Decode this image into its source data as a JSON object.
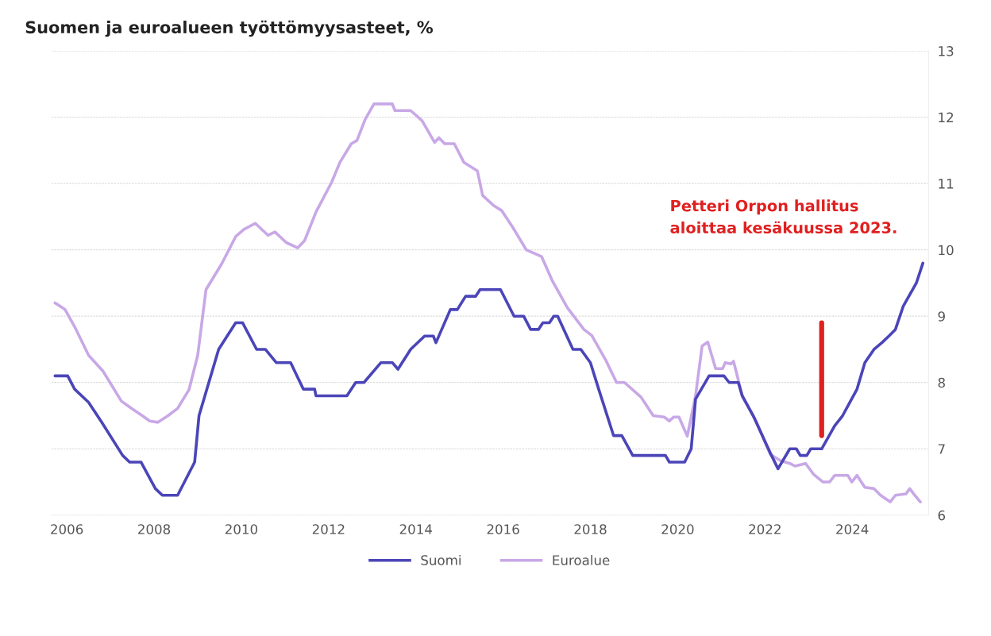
{
  "chart_data": {
    "type": "line",
    "title": "Suomen ja euroalueen työttömyysasteet, %",
    "xlim": [
      2005.65,
      2025.75
    ],
    "xticks": [
      2006,
      2008,
      2010,
      2012,
      2014,
      2016,
      2018,
      2020,
      2022,
      2024
    ],
    "ylim": [
      6,
      13
    ],
    "yticks": [
      6,
      7,
      8,
      9,
      10,
      11,
      12,
      13
    ],
    "grid": "y",
    "legend": "bottom",
    "line_style": "solid",
    "annotations": [
      "Petteri Orpon hallitus\naloittaa kesäkuussa 2023."
    ],
    "series": [
      {
        "name": "Suomi",
        "color": "#4b45b8",
        "x": [
          2005.73,
          2006.02,
          2006.18,
          2006.5,
          2006.8,
          2007.28,
          2007.44,
          2007.7,
          2008.03,
          2008.19,
          2008.54,
          2008.93,
          2009.03,
          2009.48,
          2009.87,
          2010.03,
          2010.35,
          2010.55,
          2010.8,
          2011.13,
          2011.42,
          2011.68,
          2011.71,
          2012.42,
          2012.62,
          2012.81,
          2013.2,
          2013.46,
          2013.59,
          2013.88,
          2014.2,
          2014.4,
          2014.46,
          2014.79,
          2014.95,
          2015.14,
          2015.37,
          2015.47,
          2015.94,
          2016.25,
          2016.47,
          2016.63,
          2016.81,
          2016.91,
          2017.06,
          2017.16,
          2017.25,
          2017.6,
          2017.78,
          2018.0,
          2018.19,
          2018.53,
          2018.72,
          2018.97,
          2019.72,
          2019.81,
          2020.16,
          2020.31,
          2020.41,
          2020.72,
          2021.06,
          2021.18,
          2021.39,
          2021.48,
          2021.73,
          2022.15,
          2022.3,
          2022.57,
          2022.72,
          2022.81,
          2022.96,
          2023.05,
          2023.3,
          2023.6,
          2023.78,
          2024.11,
          2024.29,
          2024.5,
          2024.68,
          2024.84,
          2024.99,
          2025.17,
          2025.47,
          2025.62
        ],
        "values": [
          8.1,
          8.1,
          7.9,
          7.7,
          7.4,
          6.9,
          6.8,
          6.8,
          6.4,
          6.3,
          6.3,
          6.8,
          7.5,
          8.5,
          8.9,
          8.9,
          8.5,
          8.5,
          8.3,
          8.3,
          7.9,
          7.9,
          7.8,
          7.8,
          8.0,
          8.0,
          8.3,
          8.3,
          8.2,
          8.5,
          8.7,
          8.7,
          8.6,
          9.1,
          9.1,
          9.3,
          9.3,
          9.4,
          9.4,
          9.0,
          9.0,
          8.8,
          8.8,
          8.9,
          8.9,
          9.0,
          9.0,
          8.5,
          8.5,
          8.3,
          7.9,
          7.2,
          7.2,
          6.9,
          6.9,
          6.8,
          6.8,
          7.0,
          7.75,
          8.1,
          8.1,
          8.0,
          8.0,
          7.8,
          7.5,
          6.9,
          6.7,
          7.0,
          7.0,
          6.9,
          6.9,
          7.0,
          7.0,
          7.35,
          7.5,
          7.9,
          8.3,
          8.5,
          8.6,
          8.7,
          8.8,
          9.15,
          9.5,
          9.8
        ]
      },
      {
        "color": "#e02020",
        "x": [
          2023.3,
          2023.3
        ],
        "values": [
          7.2,
          8.9
        ]
      },
      {
        "name": "Euroalue",
        "color": "#c8a8e6",
        "x": [
          2005.73,
          2005.96,
          2006.18,
          2006.5,
          2006.83,
          2007.25,
          2007.48,
          2007.73,
          2007.9,
          2008.09,
          2008.32,
          2008.54,
          2008.8,
          2009.0,
          2009.19,
          2009.55,
          2009.87,
          2010.06,
          2010.32,
          2010.61,
          2010.77,
          2011.03,
          2011.29,
          2011.45,
          2011.71,
          2012.07,
          2012.26,
          2012.52,
          2012.65,
          2012.84,
          2013.04,
          2013.46,
          2013.52,
          2013.88,
          2014.14,
          2014.43,
          2014.53,
          2014.66,
          2014.88,
          2015.1,
          2015.41,
          2015.53,
          2015.78,
          2015.97,
          2016.22,
          2016.53,
          2016.88,
          2017.13,
          2017.47,
          2017.85,
          2018.03,
          2018.35,
          2018.6,
          2018.78,
          2019.16,
          2019.44,
          2019.69,
          2019.81,
          2019.91,
          2020.03,
          2020.22,
          2020.41,
          2020.56,
          2020.69,
          2020.87,
          2021.03,
          2021.09,
          2021.22,
          2021.28,
          2021.37,
          2021.48,
          2021.79,
          2022.12,
          2022.21,
          2022.36,
          2022.57,
          2022.69,
          2022.93,
          2023.11,
          2023.33,
          2023.48,
          2023.6,
          2023.9,
          2023.99,
          2024.11,
          2024.29,
          2024.5,
          2024.65,
          2024.87,
          2024.99,
          2025.23,
          2025.32,
          2025.41,
          2025.56
        ],
        "values": [
          9.2,
          9.1,
          8.84,
          8.41,
          8.17,
          7.72,
          7.61,
          7.5,
          7.42,
          7.4,
          7.5,
          7.61,
          7.89,
          8.41,
          9.4,
          9.79,
          10.2,
          10.31,
          10.4,
          10.22,
          10.27,
          10.11,
          10.03,
          10.14,
          10.57,
          11.02,
          11.32,
          11.6,
          11.65,
          11.97,
          12.2,
          12.2,
          12.1,
          12.1,
          11.95,
          11.62,
          11.69,
          11.6,
          11.6,
          11.32,
          11.19,
          10.82,
          10.67,
          10.59,
          10.34,
          10.0,
          9.9,
          9.53,
          9.13,
          8.8,
          8.71,
          8.34,
          8.0,
          8.0,
          7.78,
          7.5,
          7.48,
          7.42,
          7.48,
          7.48,
          7.19,
          7.8,
          8.55,
          8.61,
          8.21,
          8.21,
          8.3,
          8.28,
          8.32,
          8.09,
          7.79,
          7.43,
          6.92,
          6.88,
          6.82,
          6.78,
          6.74,
          6.78,
          6.62,
          6.5,
          6.5,
          6.6,
          6.6,
          6.5,
          6.6,
          6.42,
          6.4,
          6.3,
          6.2,
          6.3,
          6.32,
          6.4,
          6.32,
          6.2
        ]
      }
    ]
  }
}
